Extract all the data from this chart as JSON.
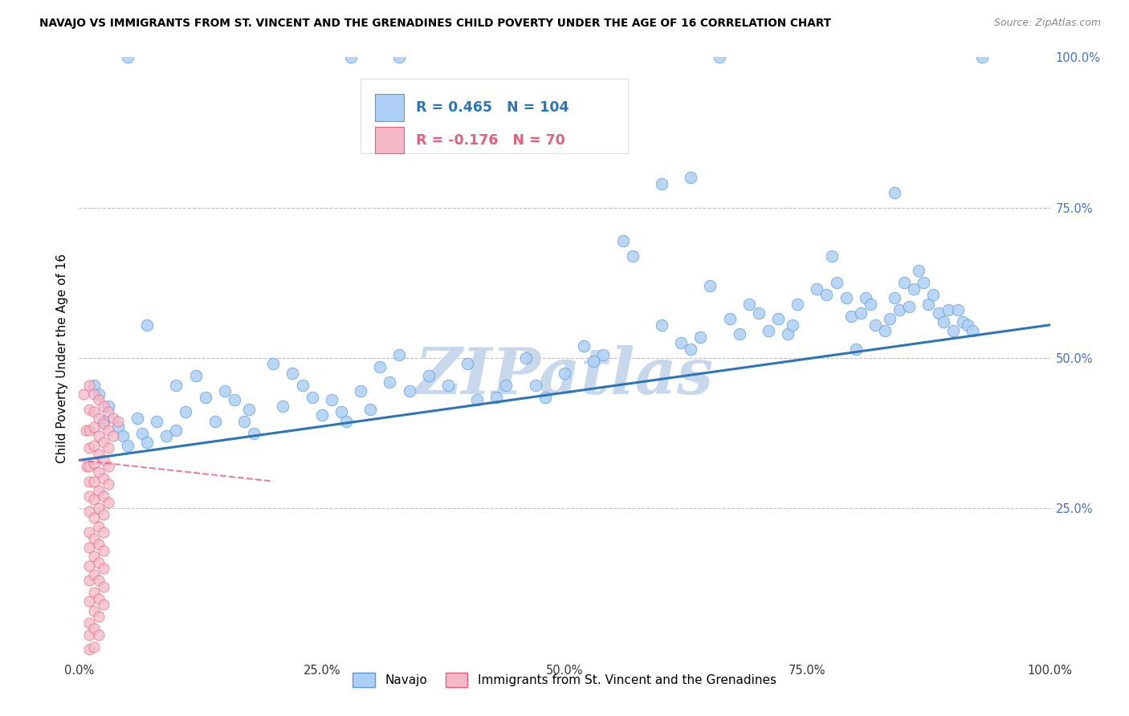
{
  "title": "NAVAJO VS IMMIGRANTS FROM ST. VINCENT AND THE GRENADINES CHILD POVERTY UNDER THE AGE OF 16 CORRELATION CHART",
  "source": "Source: ZipAtlas.com",
  "ylabel": "Child Poverty Under the Age of 16",
  "xlim": [
    0,
    1.0
  ],
  "ylim": [
    0,
    1.0
  ],
  "xtick_labels": [
    "0.0%",
    "",
    "",
    "",
    "",
    "25.0%",
    "",
    "",
    "",
    "",
    "50.0%",
    "",
    "",
    "",
    "",
    "75.0%",
    "",
    "",
    "",
    "",
    "100.0%"
  ],
  "xtick_vals": [
    0,
    0.05,
    0.1,
    0.15,
    0.2,
    0.25,
    0.3,
    0.35,
    0.4,
    0.45,
    0.5,
    0.55,
    0.6,
    0.65,
    0.7,
    0.75,
    0.8,
    0.85,
    0.9,
    0.95,
    1.0
  ],
  "ytick_labels_right": [
    "100.0%",
    "75.0%",
    "50.0%",
    "25.0%"
  ],
  "ytick_vals_right": [
    1.0,
    0.75,
    0.5,
    0.25
  ],
  "ytick_grid_vals": [
    0.75,
    0.5,
    0.25
  ],
  "legend_navajo": "Navajo",
  "legend_immigrants": "Immigrants from St. Vincent and the Grenadines",
  "R_navajo": 0.465,
  "N_navajo": 104,
  "R_immigrants": -0.176,
  "N_immigrants": 70,
  "navajo_color": "#aecff5",
  "navajo_edge_color": "#5b9bd5",
  "immigrants_color": "#f5b8c8",
  "immigrants_edge_color": "#e06080",
  "navajo_line_color": "#2e75b6",
  "immigrants_line_color": "#c05070",
  "watermark_color": "#c8d8ec",
  "background_color": "#ffffff",
  "navajo_scatter": [
    [
      0.015,
      0.455
    ],
    [
      0.02,
      0.44
    ],
    [
      0.025,
      0.395
    ],
    [
      0.03,
      0.42
    ],
    [
      0.04,
      0.385
    ],
    [
      0.045,
      0.37
    ],
    [
      0.05,
      0.355
    ],
    [
      0.06,
      0.4
    ],
    [
      0.065,
      0.375
    ],
    [
      0.07,
      0.36
    ],
    [
      0.08,
      0.395
    ],
    [
      0.09,
      0.37
    ],
    [
      0.1,
      0.455
    ],
    [
      0.1,
      0.38
    ],
    [
      0.11,
      0.41
    ],
    [
      0.12,
      0.47
    ],
    [
      0.13,
      0.435
    ],
    [
      0.14,
      0.395
    ],
    [
      0.15,
      0.445
    ],
    [
      0.16,
      0.43
    ],
    [
      0.17,
      0.395
    ],
    [
      0.175,
      0.415
    ],
    [
      0.18,
      0.375
    ],
    [
      0.07,
      0.555
    ],
    [
      0.2,
      0.49
    ],
    [
      0.21,
      0.42
    ],
    [
      0.22,
      0.475
    ],
    [
      0.23,
      0.455
    ],
    [
      0.24,
      0.435
    ],
    [
      0.25,
      0.405
    ],
    [
      0.26,
      0.43
    ],
    [
      0.27,
      0.41
    ],
    [
      0.275,
      0.395
    ],
    [
      0.29,
      0.445
    ],
    [
      0.3,
      0.415
    ],
    [
      0.28,
      1.0
    ],
    [
      0.05,
      1.0
    ],
    [
      0.33,
      1.0
    ],
    [
      0.31,
      0.485
    ],
    [
      0.32,
      0.46
    ],
    [
      0.33,
      0.505
    ],
    [
      0.34,
      0.445
    ],
    [
      0.36,
      0.47
    ],
    [
      0.38,
      0.455
    ],
    [
      0.4,
      0.49
    ],
    [
      0.41,
      0.43
    ],
    [
      0.43,
      0.435
    ],
    [
      0.44,
      0.455
    ],
    [
      0.46,
      0.5
    ],
    [
      0.47,
      0.455
    ],
    [
      0.48,
      0.435
    ],
    [
      0.5,
      0.475
    ],
    [
      0.52,
      0.52
    ],
    [
      0.53,
      0.495
    ],
    [
      0.54,
      0.505
    ],
    [
      0.56,
      0.695
    ],
    [
      0.57,
      0.67
    ],
    [
      0.6,
      0.555
    ],
    [
      0.62,
      0.525
    ],
    [
      0.63,
      0.515
    ],
    [
      0.64,
      0.535
    ],
    [
      0.65,
      0.62
    ],
    [
      0.67,
      0.565
    ],
    [
      0.68,
      0.54
    ],
    [
      0.69,
      0.59
    ],
    [
      0.7,
      0.575
    ],
    [
      0.71,
      0.545
    ],
    [
      0.72,
      0.565
    ],
    [
      0.73,
      0.54
    ],
    [
      0.735,
      0.555
    ],
    [
      0.74,
      0.59
    ],
    [
      0.76,
      0.615
    ],
    [
      0.77,
      0.605
    ],
    [
      0.775,
      0.67
    ],
    [
      0.78,
      0.625
    ],
    [
      0.79,
      0.6
    ],
    [
      0.795,
      0.57
    ],
    [
      0.8,
      0.515
    ],
    [
      0.805,
      0.575
    ],
    [
      0.81,
      0.6
    ],
    [
      0.815,
      0.59
    ],
    [
      0.82,
      0.555
    ],
    [
      0.83,
      0.545
    ],
    [
      0.835,
      0.565
    ],
    [
      0.84,
      0.6
    ],
    [
      0.845,
      0.58
    ],
    [
      0.85,
      0.625
    ],
    [
      0.855,
      0.585
    ],
    [
      0.86,
      0.615
    ],
    [
      0.865,
      0.645
    ],
    [
      0.87,
      0.625
    ],
    [
      0.875,
      0.59
    ],
    [
      0.88,
      0.605
    ],
    [
      0.885,
      0.575
    ],
    [
      0.89,
      0.56
    ],
    [
      0.895,
      0.58
    ],
    [
      0.9,
      0.545
    ],
    [
      0.905,
      0.58
    ],
    [
      0.91,
      0.56
    ],
    [
      0.915,
      0.555
    ],
    [
      0.92,
      0.545
    ],
    [
      0.84,
      0.775
    ],
    [
      0.6,
      0.79
    ],
    [
      0.63,
      0.8
    ],
    [
      0.93,
      1.0
    ],
    [
      0.66,
      1.0
    ]
  ],
  "navajo_trendline": [
    [
      0.0,
      0.33
    ],
    [
      1.0,
      0.555
    ]
  ],
  "immigrants_scatter": [
    [
      0.005,
      0.44
    ],
    [
      0.007,
      0.38
    ],
    [
      0.008,
      0.32
    ],
    [
      0.01,
      0.455
    ],
    [
      0.01,
      0.415
    ],
    [
      0.01,
      0.38
    ],
    [
      0.01,
      0.35
    ],
    [
      0.01,
      0.32
    ],
    [
      0.01,
      0.295
    ],
    [
      0.01,
      0.27
    ],
    [
      0.01,
      0.245
    ],
    [
      0.01,
      0.21
    ],
    [
      0.01,
      0.185
    ],
    [
      0.01,
      0.155
    ],
    [
      0.01,
      0.13
    ],
    [
      0.01,
      0.095
    ],
    [
      0.01,
      0.06
    ],
    [
      0.01,
      0.04
    ],
    [
      0.01,
      0.015
    ],
    [
      0.015,
      0.44
    ],
    [
      0.015,
      0.41
    ],
    [
      0.015,
      0.385
    ],
    [
      0.015,
      0.355
    ],
    [
      0.015,
      0.325
    ],
    [
      0.015,
      0.295
    ],
    [
      0.015,
      0.265
    ],
    [
      0.015,
      0.235
    ],
    [
      0.015,
      0.2
    ],
    [
      0.015,
      0.17
    ],
    [
      0.015,
      0.14
    ],
    [
      0.015,
      0.11
    ],
    [
      0.015,
      0.08
    ],
    [
      0.015,
      0.05
    ],
    [
      0.015,
      0.02
    ],
    [
      0.02,
      0.43
    ],
    [
      0.02,
      0.4
    ],
    [
      0.02,
      0.37
    ],
    [
      0.02,
      0.34
    ],
    [
      0.02,
      0.31
    ],
    [
      0.02,
      0.28
    ],
    [
      0.02,
      0.25
    ],
    [
      0.02,
      0.22
    ],
    [
      0.02,
      0.19
    ],
    [
      0.02,
      0.16
    ],
    [
      0.02,
      0.13
    ],
    [
      0.02,
      0.1
    ],
    [
      0.02,
      0.07
    ],
    [
      0.02,
      0.04
    ],
    [
      0.025,
      0.42
    ],
    [
      0.025,
      0.39
    ],
    [
      0.025,
      0.36
    ],
    [
      0.025,
      0.33
    ],
    [
      0.025,
      0.3
    ],
    [
      0.025,
      0.27
    ],
    [
      0.025,
      0.24
    ],
    [
      0.025,
      0.21
    ],
    [
      0.025,
      0.18
    ],
    [
      0.025,
      0.15
    ],
    [
      0.025,
      0.12
    ],
    [
      0.025,
      0.09
    ],
    [
      0.03,
      0.41
    ],
    [
      0.03,
      0.38
    ],
    [
      0.03,
      0.35
    ],
    [
      0.03,
      0.32
    ],
    [
      0.03,
      0.29
    ],
    [
      0.03,
      0.26
    ],
    [
      0.035,
      0.4
    ],
    [
      0.035,
      0.37
    ],
    [
      0.04,
      0.395
    ]
  ],
  "immigrants_trendline": [
    [
      0.0,
      0.33
    ],
    [
      0.2,
      0.295
    ]
  ]
}
